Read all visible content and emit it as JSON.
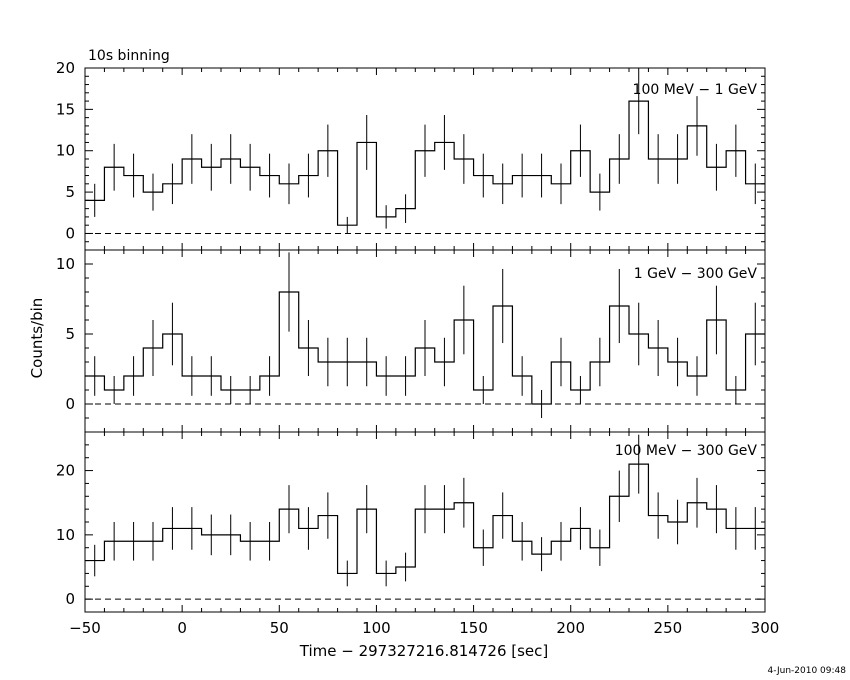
{
  "header": {
    "binning": "10s binning",
    "date": "4-Jun-2010 09:48"
  },
  "axes": {
    "xlabel": "Time − 297327216.814726 [sec]",
    "ylabel": "Counts/bin",
    "xlim": [
      -50,
      300
    ],
    "xticks": [
      "−50",
      "0",
      "50",
      "100",
      "150",
      "200",
      "250",
      "300"
    ]
  },
  "chart_data": [
    {
      "type": "line",
      "label": "100 MeV − 1 GeV",
      "ylim": [
        -2,
        20
      ],
      "yticks": [
        0,
        5,
        10,
        15,
        20
      ],
      "bin_width": 10,
      "x": [
        -50,
        -40,
        -30,
        -20,
        -10,
        0,
        10,
        20,
        30,
        40,
        50,
        60,
        70,
        80,
        90,
        100,
        110,
        120,
        130,
        140,
        150,
        160,
        170,
        180,
        190,
        200,
        210,
        220,
        230,
        240,
        250,
        260,
        270,
        280,
        290
      ],
      "values": [
        4,
        8,
        7,
        5,
        6,
        9,
        8,
        9,
        8,
        7,
        6,
        7,
        10,
        1,
        11,
        2,
        3,
        10,
        11,
        9,
        7,
        6,
        7,
        7,
        6,
        10,
        5,
        9,
        16,
        9,
        9,
        13,
        8,
        10,
        6
      ]
    },
    {
      "type": "line",
      "label": "1 GeV − 300 GeV",
      "ylim": [
        -2,
        11
      ],
      "yticks": [
        0,
        5,
        10
      ],
      "bin_width": 10,
      "x": [
        -50,
        -40,
        -30,
        -20,
        -10,
        0,
        10,
        20,
        30,
        40,
        50,
        60,
        70,
        80,
        90,
        100,
        110,
        120,
        130,
        140,
        150,
        160,
        170,
        180,
        190,
        200,
        210,
        220,
        230,
        240,
        250,
        260,
        270,
        280,
        290
      ],
      "values": [
        2,
        1,
        2,
        4,
        5,
        2,
        2,
        1,
        1,
        2,
        8,
        4,
        3,
        3,
        3,
        2,
        2,
        4,
        3,
        6,
        1,
        7,
        2,
        0,
        3,
        1,
        3,
        7,
        5,
        4,
        3,
        2,
        6,
        1,
        5
      ]
    },
    {
      "type": "line",
      "label": "100 MeV − 300 GeV",
      "ylim": [
        -2,
        26
      ],
      "yticks": [
        0,
        10,
        20
      ],
      "bin_width": 10,
      "x": [
        -50,
        -40,
        -30,
        -20,
        -10,
        0,
        10,
        20,
        30,
        40,
        50,
        60,
        70,
        80,
        90,
        100,
        110,
        120,
        130,
        140,
        150,
        160,
        170,
        180,
        190,
        200,
        210,
        220,
        230,
        240,
        250,
        260,
        270,
        280,
        290
      ],
      "values": [
        6,
        9,
        9,
        9,
        11,
        11,
        10,
        10,
        9,
        9,
        14,
        11,
        13,
        4,
        14,
        4,
        5,
        14,
        14,
        15,
        8,
        13,
        9,
        7,
        9,
        11,
        8,
        16,
        21,
        13,
        12,
        15,
        14,
        11,
        11
      ]
    }
  ]
}
